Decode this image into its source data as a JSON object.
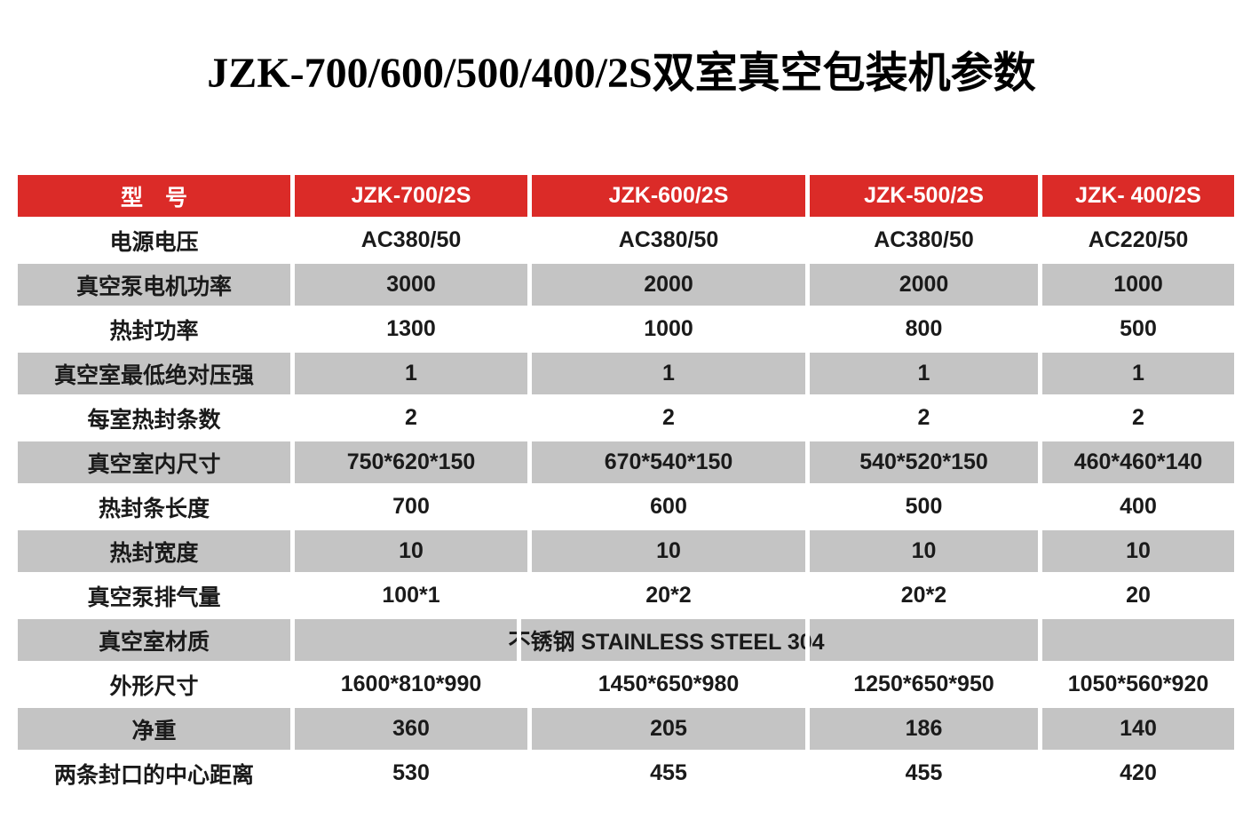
{
  "page": {
    "title": "JZK-700/600/500/400/2S双室真空包装机参数"
  },
  "table": {
    "header": {
      "label": "型　号",
      "models": [
        "JZK-700/2S",
        "JZK-600/2S",
        "JZK-500/2S",
        "JZK- 400/2S"
      ]
    },
    "rows": [
      {
        "label": "电源电压",
        "values": [
          "AC380/50",
          "AC380/50",
          "AC380/50",
          "AC220/50"
        ],
        "shaded": false
      },
      {
        "label": "真空泵电机功率",
        "values": [
          "3000",
          "2000",
          "2000",
          "1000"
        ],
        "shaded": true
      },
      {
        "label": "热封功率",
        "values": [
          "1300",
          "1000",
          "800",
          "500"
        ],
        "shaded": false
      },
      {
        "label": "真空室最低绝对压强",
        "values": [
          "1",
          "1",
          "1",
          "1"
        ],
        "shaded": true
      },
      {
        "label": "每室热封条数",
        "values": [
          "2",
          "2",
          "2",
          "2"
        ],
        "shaded": false
      },
      {
        "label": "真空室内尺寸",
        "values": [
          "750*620*150",
          "670*540*150",
          "540*520*150",
          "460*460*140"
        ],
        "shaded": true
      },
      {
        "label": "热封条长度",
        "values": [
          "700",
          "600",
          "500",
          "400"
        ],
        "shaded": false
      },
      {
        "label": "热封宽度",
        "values": [
          "10",
          "10",
          "10",
          "10"
        ],
        "shaded": true
      },
      {
        "label": "真空泵排气量",
        "values": [
          "100*1",
          "20*2",
          "20*2",
          "20"
        ],
        "shaded": false
      },
      {
        "label": "真空室材质",
        "merged_value": "不锈钢 STAINLESS STEEL 304",
        "merged_span": 3,
        "trailing_empty": 1,
        "shaded": true
      },
      {
        "label": "外形尺寸",
        "values": [
          "1600*810*990",
          "1450*650*980",
          "1250*650*950",
          "1050*560*920"
        ],
        "shaded": false
      },
      {
        "label": "净重",
        "values": [
          "360",
          "205",
          "186",
          "140"
        ],
        "shaded": true
      },
      {
        "label": "两条封口的中心距离",
        "values": [
          "530",
          "455",
          "455",
          "420"
        ],
        "shaded": false
      }
    ],
    "colors": {
      "header_bg": "#db2b28",
      "header_text": "#ffffff",
      "row_shade": "#c4c4c4",
      "text": "#1a1a1a",
      "background": "#ffffff"
    }
  },
  "chart_data": {
    "type": "table",
    "title": "JZK-700/600/500/400/2S双室真空包装机参数",
    "columns": [
      "型　号",
      "JZK-700/2S",
      "JZK-600/2S",
      "JZK-500/2S",
      "JZK- 400/2S"
    ],
    "rows": [
      [
        "电源电压",
        "AC380/50",
        "AC380/50",
        "AC380/50",
        "AC220/50"
      ],
      [
        "真空泵电机功率",
        "3000",
        "2000",
        "2000",
        "1000"
      ],
      [
        "热封功率",
        "1300",
        "1000",
        "800",
        "500"
      ],
      [
        "真空室最低绝对压强",
        "1",
        "1",
        "1",
        "1"
      ],
      [
        "每室热封条数",
        "2",
        "2",
        "2",
        "2"
      ],
      [
        "真空室内尺寸",
        "750*620*150",
        "670*540*150",
        "540*520*150",
        "460*460*140"
      ],
      [
        "热封条长度",
        "700",
        "600",
        "500",
        "400"
      ],
      [
        "热封宽度",
        "10",
        "10",
        "10",
        "10"
      ],
      [
        "真空泵排气量",
        "100*1",
        "20*2",
        "20*2",
        "20"
      ],
      [
        "真空室材质",
        "不锈钢 STAINLESS STEEL 304",
        "",
        "",
        ""
      ],
      [
        "外形尺寸",
        "1600*810*990",
        "1450*650*980",
        "1250*650*950",
        "1050*560*920"
      ],
      [
        "净重",
        "360",
        "205",
        "186",
        "140"
      ],
      [
        "两条封口的中心距离",
        "530",
        "455",
        "455",
        "420"
      ]
    ],
    "layout_hints": {
      "header_style": "red background, white bold text",
      "body_style": "alternating white and gray rows, all text bold centered",
      "merged_cell": "row 真空室材质 value spans model columns 1-3, last model column empty",
      "grid": "white 5px gaps between cells, no visible borders"
    }
  }
}
